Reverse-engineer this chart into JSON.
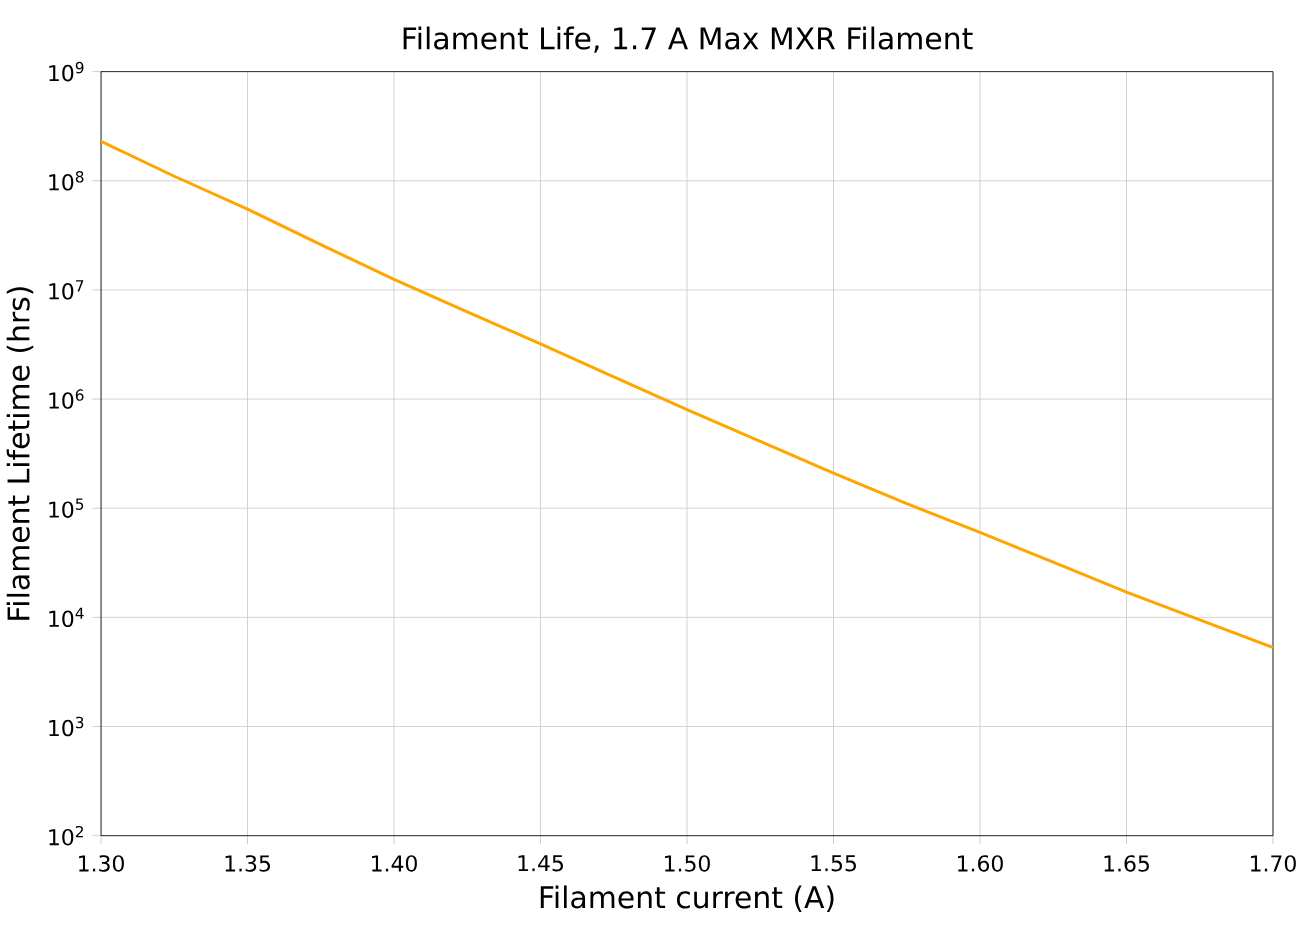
{
  "chart_data": {
    "type": "line",
    "title": "Filament Life, 1.7 A Max MXR Filament",
    "xlabel": "Filament current (A)",
    "ylabel": "Filament Lifetime (hrs)",
    "x": [
      1.3,
      1.325,
      1.35,
      1.375,
      1.4,
      1.425,
      1.45,
      1.475,
      1.5,
      1.525,
      1.55,
      1.575,
      1.6,
      1.625,
      1.65,
      1.675,
      1.7
    ],
    "series": [
      {
        "color": "#ffa500",
        "values": [
          230000000,
          110000000,
          55000000,
          26000000,
          12500000,
          6300000,
          3200000,
          1600000,
          800000,
          410000,
          210000,
          110000,
          60000,
          32000,
          17000,
          9500,
          5300
        ]
      }
    ],
    "xlim": [
      1.3,
      1.7
    ],
    "xticks": [
      {
        "value": 1.3,
        "label": "1.30"
      },
      {
        "value": 1.35,
        "label": "1.35"
      },
      {
        "value": 1.4,
        "label": "1.40"
      },
      {
        "value": 1.45,
        "label": "1.45"
      },
      {
        "value": 1.5,
        "label": "1.50"
      },
      {
        "value": 1.55,
        "label": "1.55"
      },
      {
        "value": 1.6,
        "label": "1.60"
      },
      {
        "value": 1.65,
        "label": "1.65"
      },
      {
        "value": 1.7,
        "label": "1.70"
      }
    ],
    "ylim": [
      100,
      1000000000
    ],
    "yticks": [
      {
        "value": 100,
        "label": "10$^{2}$"
      },
      {
        "value": 1000,
        "label": "10$^{3}$"
      },
      {
        "value": 10000,
        "label": "10$^{4}$"
      },
      {
        "value": 100000,
        "label": "10$^{5}$"
      },
      {
        "value": 1000000,
        "label": "10$^{6}$"
      },
      {
        "value": 10000000,
        "label": "10$^{7}$"
      },
      {
        "value": 100000000,
        "label": "10$^{8}$"
      },
      {
        "value": 1000000000,
        "label": "10$^{9}$"
      }
    ],
    "log": "y",
    "grid": true,
    "marker": "none",
    "line_style": "solid"
  }
}
